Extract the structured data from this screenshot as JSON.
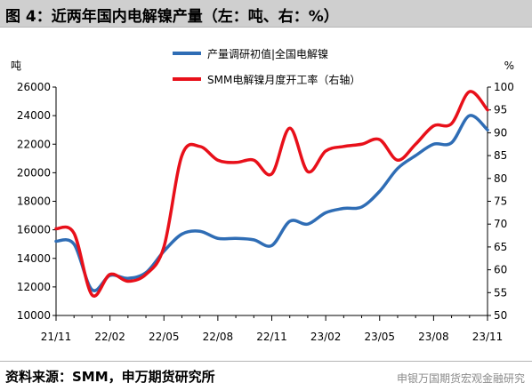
{
  "title": "图 4：近两年国内电解镍产量（左：吨、右：%）",
  "source": "资料来源：SMM，申万期货研究所",
  "watermark": "申银万国期货宏观金融研究",
  "colors": {
    "production": "#2f6db5",
    "utilization": "#e8101a"
  },
  "chart_data": {
    "type": "line",
    "left_axis": {
      "label": "吨",
      "ylim": [
        10000,
        26000
      ],
      "ticks": [
        "10000",
        "12000",
        "14000",
        "16000",
        "18000",
        "20000",
        "22000",
        "24000",
        "26000"
      ]
    },
    "right_axis": {
      "label": "%",
      "ylim": [
        50,
        100
      ],
      "ticks": [
        "50",
        "55",
        "60",
        "65",
        "70",
        "75",
        "80",
        "85",
        "90",
        "95",
        "100"
      ]
    },
    "x_ticks": [
      "21/11",
      "22/02",
      "22/05",
      "22/08",
      "22/11",
      "23/02",
      "23/05",
      "23/08",
      "23/11"
    ],
    "x": [
      "21/11",
      "21/12",
      "22/01",
      "22/02",
      "22/03",
      "22/04",
      "22/05",
      "22/06",
      "22/07",
      "22/08",
      "22/09",
      "22/10",
      "22/11",
      "22/12",
      "23/01",
      "23/02",
      "23/03",
      "23/04",
      "23/05",
      "23/06",
      "23/07",
      "23/08",
      "23/09",
      "23/10",
      "23/11"
    ],
    "series": [
      {
        "name": "产量调研初值|全国电解镍",
        "axis": "left",
        "values": [
          15200,
          15000,
          11800,
          12800,
          12600,
          13000,
          14500,
          15700,
          15900,
          15400,
          15400,
          15300,
          14900,
          16600,
          16400,
          17200,
          17500,
          17600,
          18700,
          20300,
          21200,
          22000,
          22100,
          24000,
          23000
        ]
      },
      {
        "name": "SMM电解镍月度开工率（右轴）",
        "axis": "right",
        "values": [
          69,
          68,
          54.5,
          59,
          57.5,
          59,
          65,
          85,
          87,
          84,
          83.5,
          84,
          81,
          91,
          81.5,
          86,
          87,
          87.5,
          88.5,
          84,
          87.5,
          91.5,
          92,
          99,
          95
        ]
      }
    ]
  }
}
